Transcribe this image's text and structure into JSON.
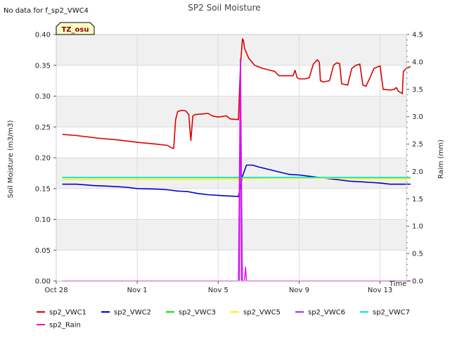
{
  "chart_data": {
    "type": "line",
    "title": "SP2 Soil Moisture",
    "no_data_note": "No data for f_sp2_VWC4",
    "site_badge": "TZ_osu",
    "xlabel": "Time",
    "ylabel": "Soil Moisture (m3/m3)",
    "y2label": "Raim (mm)",
    "xlim": [
      0,
      17.3
    ],
    "ylim": [
      0,
      0.4
    ],
    "y2lim": [
      0,
      4.5
    ],
    "x_ticks": [
      {
        "x": 0,
        "label": "Oct 28"
      },
      {
        "x": 4,
        "label": "Nov 1"
      },
      {
        "x": 8,
        "label": "Nov 5"
      },
      {
        "x": 12,
        "label": "Nov 9"
      },
      {
        "x": 16,
        "label": "Nov 13"
      }
    ],
    "y_ticks": [
      {
        "v": 0.0,
        "label": "0.00"
      },
      {
        "v": 0.05,
        "label": "0.05"
      },
      {
        "v": 0.1,
        "label": "0.10"
      },
      {
        "v": 0.15,
        "label": "0.15"
      },
      {
        "v": 0.2,
        "label": "0.20"
      },
      {
        "v": 0.25,
        "label": "0.25"
      },
      {
        "v": 0.3,
        "label": "0.30"
      },
      {
        "v": 0.35,
        "label": "0.35"
      },
      {
        "v": 0.4,
        "label": "0.40"
      }
    ],
    "y2_ticks": [
      {
        "v": 0.0,
        "label": "0.0"
      },
      {
        "v": 0.5,
        "label": "0.5"
      },
      {
        "v": 1.0,
        "label": "1.0"
      },
      {
        "v": 1.5,
        "label": "1.5"
      },
      {
        "v": 2.0,
        "label": "2.0"
      },
      {
        "v": 2.5,
        "label": "2.5"
      },
      {
        "v": 3.0,
        "label": "3.0"
      },
      {
        "v": 3.5,
        "label": "3.5"
      },
      {
        "v": 4.0,
        "label": "4.0"
      },
      {
        "v": 4.5,
        "label": "4.5"
      }
    ],
    "series": [
      {
        "name": "sp2_VWC1",
        "color": "#dd0000",
        "axis": "left",
        "points": [
          [
            0.3,
            0.238
          ],
          [
            1.0,
            0.236
          ],
          [
            2.0,
            0.232
          ],
          [
            3.0,
            0.229
          ],
          [
            4.0,
            0.225
          ],
          [
            5.0,
            0.222
          ],
          [
            5.5,
            0.22
          ],
          [
            5.7,
            0.216
          ],
          [
            5.8,
            0.215
          ],
          [
            5.9,
            0.262
          ],
          [
            6.0,
            0.275
          ],
          [
            6.2,
            0.277
          ],
          [
            6.4,
            0.276
          ],
          [
            6.55,
            0.27
          ],
          [
            6.65,
            0.228
          ],
          [
            6.75,
            0.268
          ],
          [
            6.85,
            0.27
          ],
          [
            7.2,
            0.271
          ],
          [
            7.5,
            0.272
          ],
          [
            7.7,
            0.268
          ],
          [
            8.0,
            0.266
          ],
          [
            8.4,
            0.268
          ],
          [
            8.6,
            0.263
          ],
          [
            9.0,
            0.262
          ],
          [
            9.1,
            0.35
          ],
          [
            9.2,
            0.393
          ],
          [
            9.25,
            0.39
          ],
          [
            9.3,
            0.378
          ],
          [
            9.5,
            0.362
          ],
          [
            9.8,
            0.35
          ],
          [
            10.2,
            0.345
          ],
          [
            10.8,
            0.34
          ],
          [
            11.0,
            0.333
          ],
          [
            11.5,
            0.333
          ],
          [
            11.7,
            0.333
          ],
          [
            11.8,
            0.342
          ],
          [
            11.9,
            0.33
          ],
          [
            12.0,
            0.328
          ],
          [
            12.3,
            0.328
          ],
          [
            12.5,
            0.33
          ],
          [
            12.7,
            0.352
          ],
          [
            12.9,
            0.359
          ],
          [
            13.0,
            0.355
          ],
          [
            13.05,
            0.325
          ],
          [
            13.2,
            0.323
          ],
          [
            13.5,
            0.325
          ],
          [
            13.7,
            0.35
          ],
          [
            13.85,
            0.354
          ],
          [
            14.0,
            0.353
          ],
          [
            14.1,
            0.32
          ],
          [
            14.4,
            0.318
          ],
          [
            14.6,
            0.345
          ],
          [
            14.8,
            0.35
          ],
          [
            15.0,
            0.352
          ],
          [
            15.15,
            0.318
          ],
          [
            15.3,
            0.316
          ],
          [
            15.5,
            0.33
          ],
          [
            15.7,
            0.345
          ],
          [
            16.0,
            0.349
          ],
          [
            16.15,
            0.311
          ],
          [
            16.5,
            0.31
          ],
          [
            16.7,
            0.311
          ],
          [
            16.8,
            0.314
          ],
          [
            16.9,
            0.308
          ],
          [
            17.0,
            0.306
          ],
          [
            17.1,
            0.304
          ],
          [
            17.15,
            0.34
          ],
          [
            17.3,
            0.345
          ],
          [
            17.5,
            0.348
          ]
        ]
      },
      {
        "name": "sp2_VWC2",
        "color": "#0000cc",
        "axis": "left",
        "points": [
          [
            0.3,
            0.157
          ],
          [
            1.0,
            0.157
          ],
          [
            1.8,
            0.155
          ],
          [
            2.5,
            0.154
          ],
          [
            3.0,
            0.153
          ],
          [
            3.5,
            0.152
          ],
          [
            4.0,
            0.15
          ],
          [
            5.0,
            0.149
          ],
          [
            5.5,
            0.148
          ],
          [
            6.0,
            0.146
          ],
          [
            6.5,
            0.145
          ],
          [
            7.0,
            0.142
          ],
          [
            7.5,
            0.14
          ],
          [
            8.0,
            0.139
          ],
          [
            8.5,
            0.138
          ],
          [
            9.0,
            0.137
          ],
          [
            9.2,
            0.17
          ],
          [
            9.4,
            0.188
          ],
          [
            9.7,
            0.188
          ],
          [
            10.0,
            0.185
          ],
          [
            10.5,
            0.181
          ],
          [
            11.0,
            0.177
          ],
          [
            11.5,
            0.173
          ],
          [
            12.0,
            0.172
          ],
          [
            12.5,
            0.17
          ],
          [
            13.0,
            0.168
          ],
          [
            13.5,
            0.166
          ],
          [
            14.0,
            0.164
          ],
          [
            14.5,
            0.162
          ],
          [
            15.0,
            0.161
          ],
          [
            15.5,
            0.16
          ],
          [
            16.0,
            0.159
          ],
          [
            16.5,
            0.157
          ],
          [
            17.0,
            0.157
          ],
          [
            17.5,
            0.157
          ]
        ]
      },
      {
        "name": "sp2_VWC3",
        "color": "#00ee00",
        "axis": "left",
        "points": [
          [
            0.3,
            0.168
          ],
          [
            17.5,
            0.168
          ]
        ]
      },
      {
        "name": "sp2_VWC5",
        "color": "#ffee00",
        "axis": "left",
        "points": [
          [
            0.3,
            0.165
          ],
          [
            7.0,
            0.165
          ],
          [
            9.0,
            0.166
          ],
          [
            11.0,
            0.167
          ],
          [
            13.0,
            0.167
          ],
          [
            15.0,
            0.166
          ],
          [
            17.5,
            0.166
          ]
        ]
      },
      {
        "name": "sp2_VWC6",
        "color": "#9b30ff",
        "axis": "left",
        "points": [
          [
            9.05,
            0.0
          ],
          [
            9.1,
            0.36
          ],
          [
            9.2,
            0.0
          ]
        ]
      },
      {
        "name": "sp2_VWC7",
        "color": "#00e5ee",
        "axis": "left",
        "points": [
          [
            0.3,
            0.168
          ],
          [
            17.5,
            0.168
          ]
        ]
      },
      {
        "name": "sp2_Rain",
        "color": "#ee00ee",
        "axis": "right",
        "points": [
          [
            0.3,
            0.0
          ],
          [
            9.0,
            0.0
          ],
          [
            9.1,
            4.05
          ],
          [
            9.15,
            0.0
          ],
          [
            9.3,
            0.0
          ],
          [
            9.35,
            0.25
          ],
          [
            9.4,
            0.0
          ],
          [
            17.5,
            0.0
          ]
        ]
      }
    ]
  }
}
